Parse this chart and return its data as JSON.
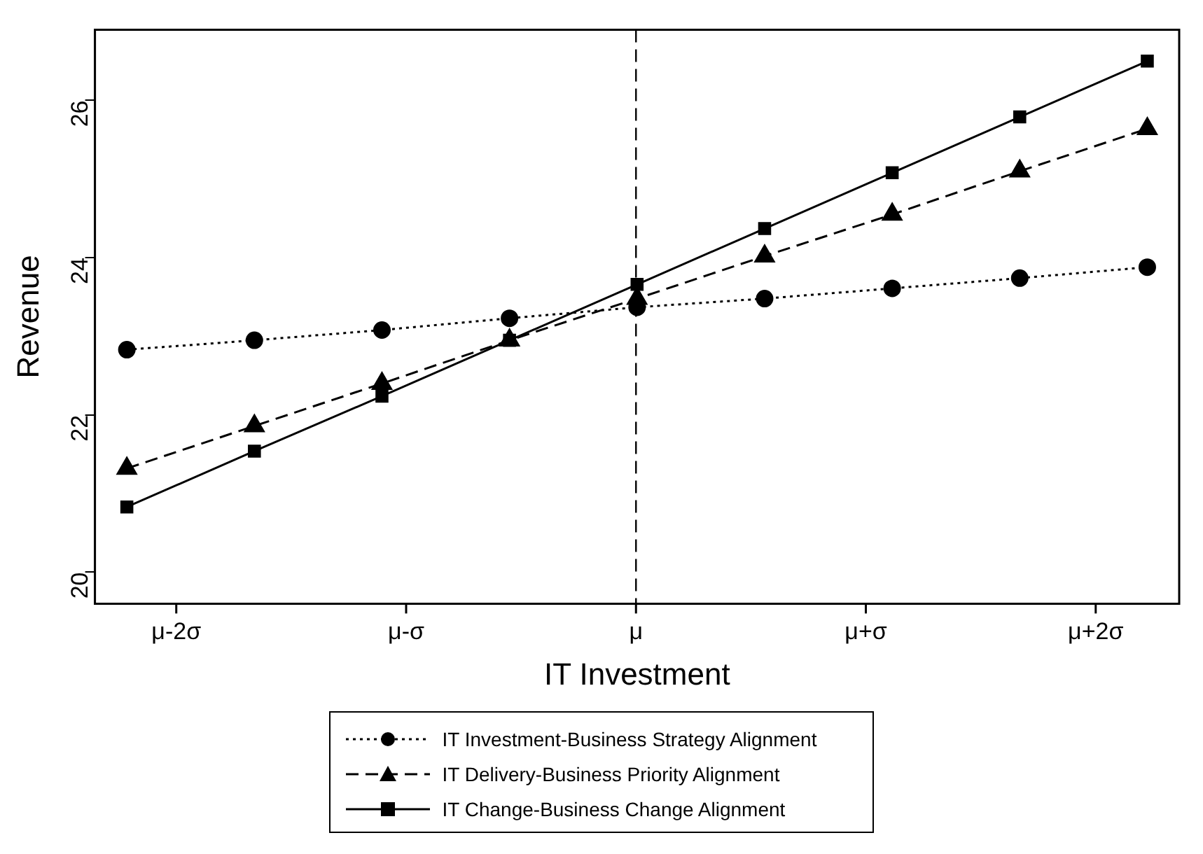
{
  "chart_data": {
    "type": "line",
    "xlabel": "IT Investment",
    "ylabel": "Revenue",
    "categories": [
      null,
      null,
      null,
      null,
      null,
      null,
      null,
      null,
      null
    ],
    "annotations": [
      "μ-2σ",
      "μ-σ",
      "μ+σ",
      "μ+2σ"
    ],
    "ylim": [
      19.6,
      26.9
    ],
    "yticks": [
      20,
      22,
      24,
      26
    ],
    "series": [
      {
        "name": "IT Investment-Business Strategy Alignment",
        "color": "#000000",
        "marker": "circle",
        "line_style": "dotted",
        "values": [
          22.83,
          22.95,
          23.08,
          23.23,
          23.37,
          23.48,
          23.61,
          23.74,
          23.88
        ]
      },
      {
        "name": "IT Delivery-Business Priority Alignment",
        "color": "#000000",
        "marker": "triangle",
        "line_style": "dashed",
        "values": [
          21.32,
          21.86,
          22.4,
          22.95,
          23.48,
          24.02,
          24.55,
          25.1,
          25.64
        ]
      },
      {
        "name": "IT Change-Business Change Alignment",
        "color": "#000000",
        "marker": "square",
        "line_style": "solid",
        "values": [
          20.83,
          21.54,
          22.24,
          22.95,
          23.66,
          24.37,
          25.08,
          25.79,
          26.5
        ]
      }
    ],
    "ref_lines": [
      {
        "axis": "x",
        "label": "μ",
        "line_style": "dashed",
        "color": "#000000"
      }
    ],
    "grid": false,
    "legend": "bottom"
  }
}
